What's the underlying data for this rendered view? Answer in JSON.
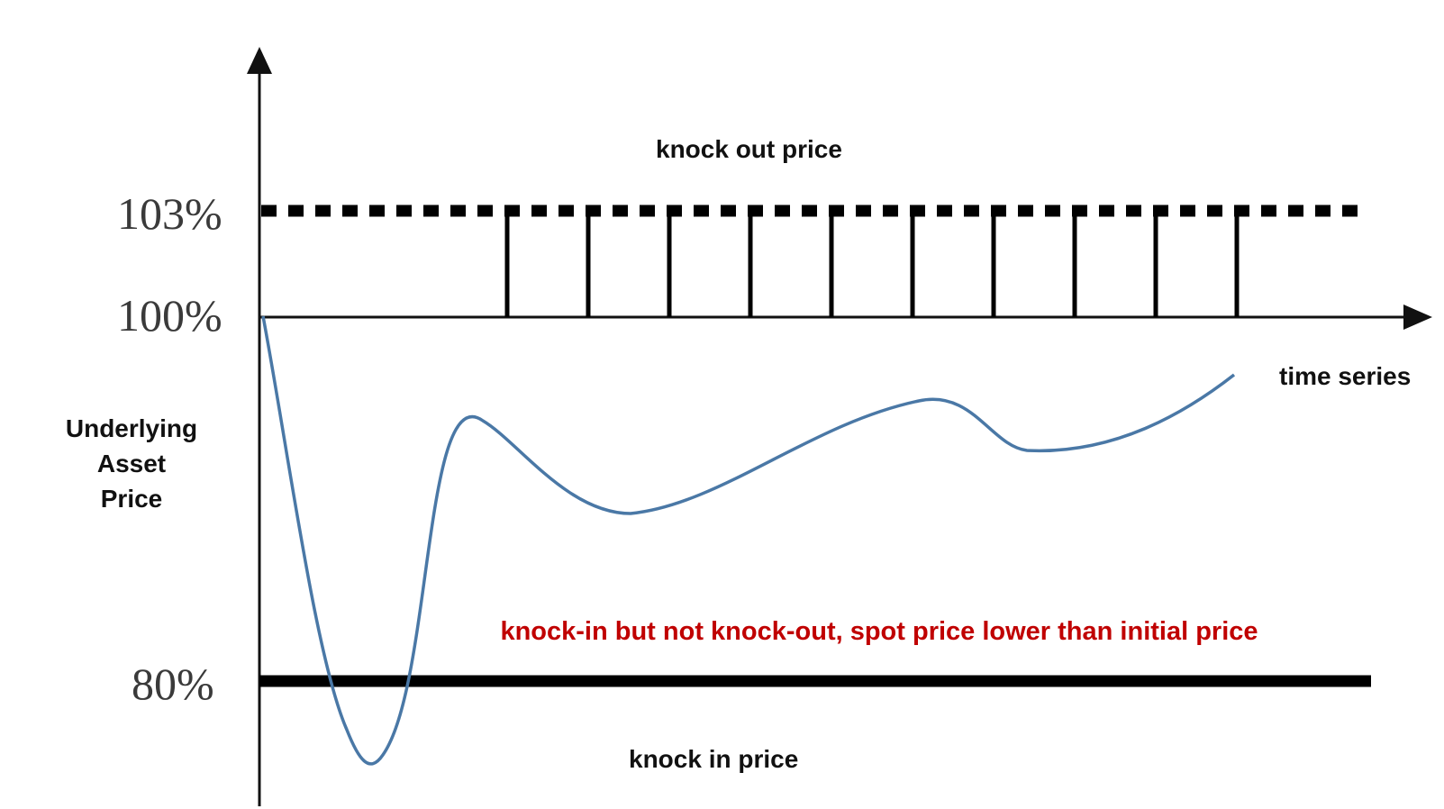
{
  "labels": {
    "level_103": "103%",
    "level_100": "100%",
    "level_80": "80%",
    "knock_out": "knock out price",
    "knock_in": "knock in price",
    "time_series": "time series",
    "y_title_line1": "Underlying",
    "y_title_line2": "Asset",
    "y_title_line3": "Price",
    "scenario": "knock-in but not knock-out, spot price lower than initial price"
  },
  "colors": {
    "axis": "#111111",
    "price_path": "#4a78a6",
    "scenario_text": "#c00000",
    "barrier": "#000000"
  },
  "observation_dates": 10
}
